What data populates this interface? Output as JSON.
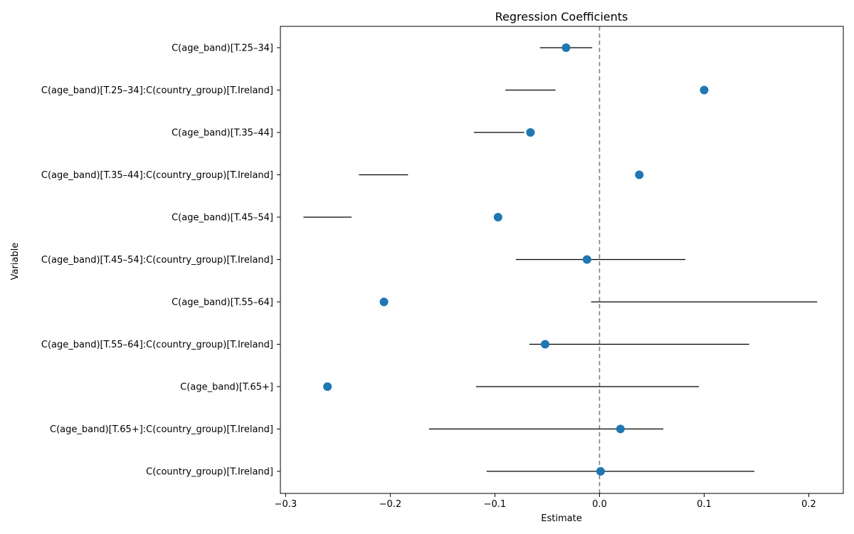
{
  "chart_data": {
    "type": "scatter",
    "title": "Regression Coefficients",
    "xlabel": "Estimate",
    "ylabel": "Variable",
    "xlim": [
      -0.305,
      0.233
    ],
    "xticks": [
      -0.3,
      -0.2,
      -0.1,
      0.0,
      0.1,
      0.2
    ],
    "xtick_labels": [
      "−0.3",
      "−0.2",
      "−0.1",
      "0.0",
      "0.1",
      "0.2"
    ],
    "reference_line": 0.0,
    "grid": false,
    "point_color": "#1f77b4",
    "interval_color": "#000000",
    "reference_color": "#808080",
    "categories": [
      "C(age_band)[T.25–34]",
      "C(age_band)[T.25–34]:C(country_group)[T.Ireland]",
      "C(age_band)[T.35–44]",
      "C(age_band)[T.35–44]:C(country_group)[T.Ireland]",
      "C(age_band)[T.45–54]",
      "C(age_band)[T.45–54]:C(country_group)[T.Ireland]",
      "C(age_band)[T.55–64]",
      "C(age_band)[T.55–64]:C(country_group)[T.Ireland]",
      "C(age_band)[T.65+]",
      "C(age_band)[T.65+]:C(country_group)[T.Ireland]",
      "C(country_group)[T.Ireland]"
    ],
    "estimates": [
      -0.032,
      0.1,
      -0.066,
      0.038,
      -0.097,
      -0.012,
      -0.206,
      -0.052,
      -0.26,
      0.02,
      0.001
    ],
    "ci_lower": [
      -0.057,
      -0.09,
      -0.12,
      -0.23,
      -0.283,
      -0.08,
      -0.008,
      -0.067,
      -0.118,
      -0.163,
      -0.108
    ],
    "ci_upper": [
      -0.007,
      -0.042,
      -0.072,
      -0.183,
      -0.237,
      0.082,
      0.208,
      0.143,
      0.095,
      0.061,
      0.148
    ]
  }
}
